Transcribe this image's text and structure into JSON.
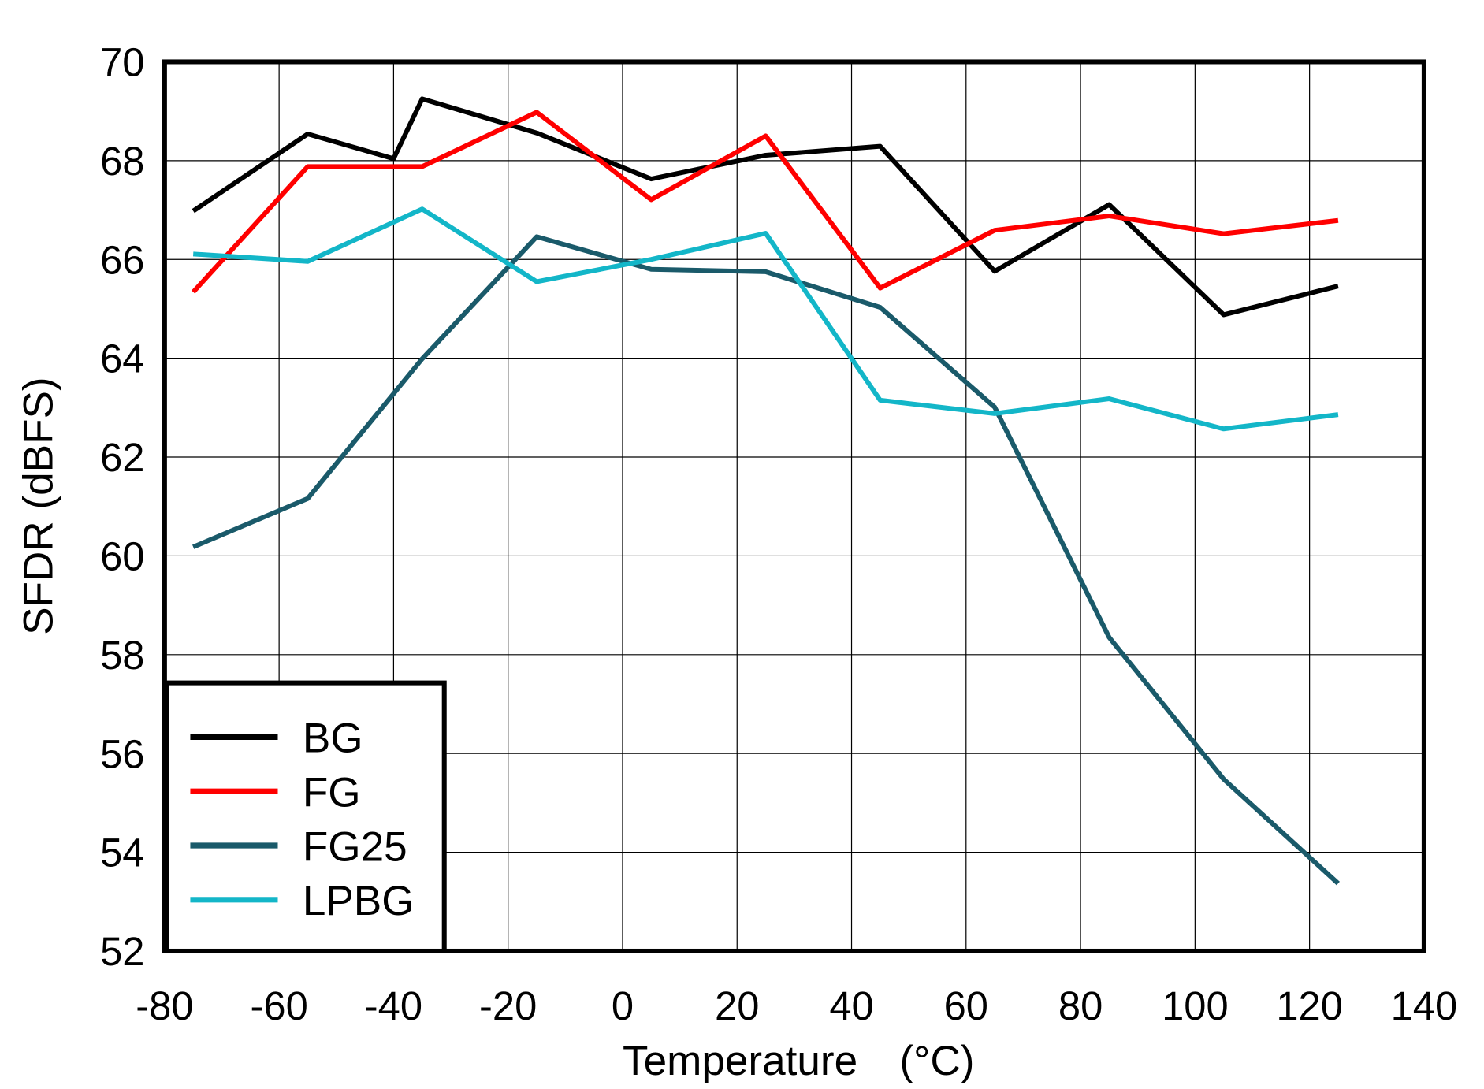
{
  "chart_data": {
    "type": "line",
    "title": "",
    "xlabel": "Temperature",
    "xlabel_unit": "(°C)",
    "ylabel": "SFDR  (dBFS)",
    "xlim": [
      -80,
      140
    ],
    "ylim": [
      52,
      70
    ],
    "xticks": [
      "-80",
      "-60",
      "-40",
      "-20",
      "0",
      "20",
      "40",
      "60",
      "80",
      "100",
      "120",
      "140"
    ],
    "yticks": [
      "52",
      "54",
      "56",
      "58",
      "60",
      "62",
      "64",
      "66",
      "68",
      "70"
    ],
    "grid": true,
    "legend_position": "bottom-left",
    "series": [
      {
        "name": "BG",
        "color": "#000000",
        "x": [
          -75,
          -55,
          -40,
          -35,
          -15,
          5,
          25,
          45,
          65,
          85,
          105,
          125
        ],
        "y": [
          66.98,
          68.54,
          68.04,
          69.25,
          68.56,
          67.63,
          68.11,
          68.29,
          65.76,
          67.11,
          64.88,
          65.46
        ]
      },
      {
        "name": "FG",
        "color": "#ff0000",
        "x": [
          -75,
          -55,
          -35,
          -15,
          5,
          25,
          45,
          65,
          85,
          105,
          125
        ],
        "y": [
          65.34,
          67.88,
          67.88,
          68.98,
          67.21,
          68.5,
          65.42,
          66.59,
          66.88,
          66.52,
          66.79
        ]
      },
      {
        "name": "FG25",
        "color": "#1a5a6a",
        "x": [
          -75,
          -55,
          -35,
          -15,
          5,
          25,
          45,
          65,
          85,
          105,
          125
        ],
        "y": [
          60.18,
          61.16,
          63.99,
          66.46,
          65.8,
          65.75,
          65.03,
          63.01,
          58.35,
          55.48,
          53.37
        ]
      },
      {
        "name": "LPBG",
        "color": "#13b6c8",
        "x": [
          -75,
          -55,
          -35,
          -15,
          5,
          25,
          45,
          65,
          85,
          105,
          125
        ],
        "y": [
          66.11,
          65.96,
          67.02,
          65.55,
          66.0,
          66.53,
          63.15,
          62.88,
          63.18,
          62.57,
          62.86
        ]
      }
    ]
  }
}
